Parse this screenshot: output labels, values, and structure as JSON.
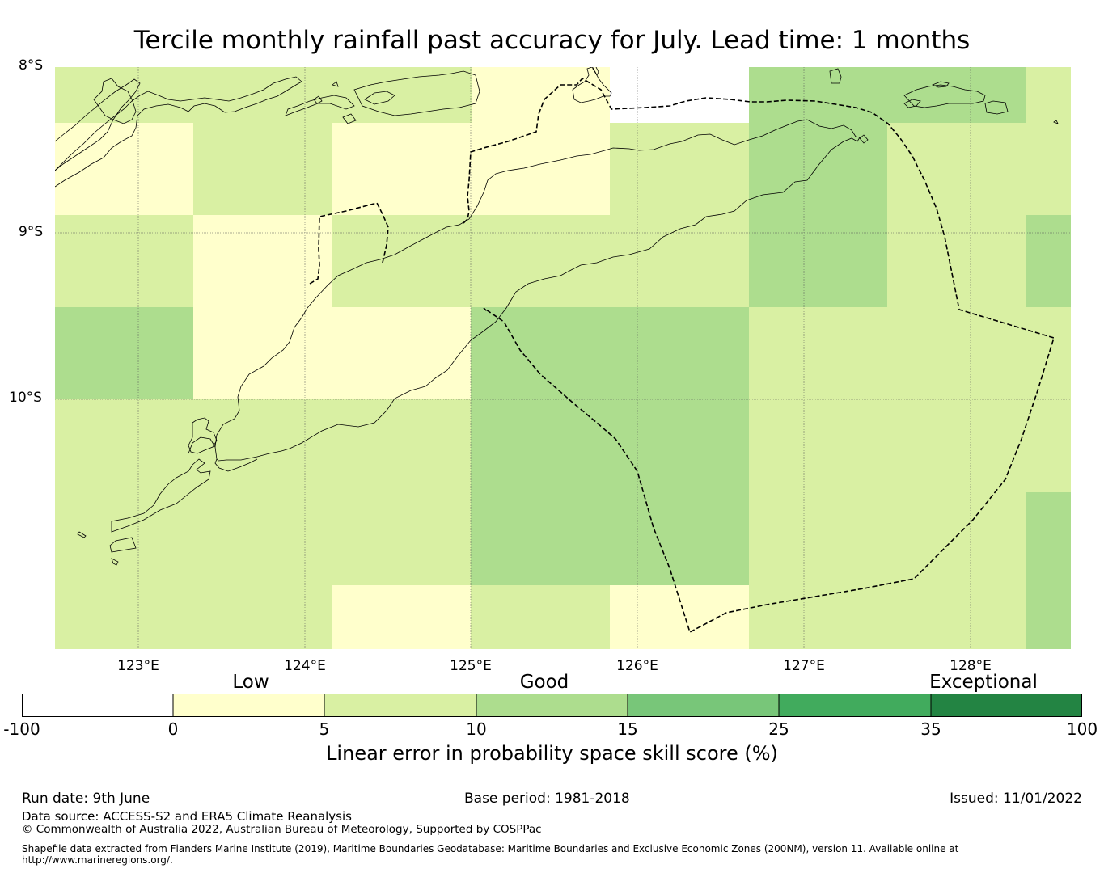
{
  "title": "Tercile monthly rainfall past accuracy for July. Lead time: 1 months",
  "map": {
    "lat_labels": [
      "8°S",
      "9°S",
      "10°S"
    ],
    "lon_labels": [
      "123°E",
      "124°E",
      "125°E",
      "126°E",
      "127°E",
      "128°E"
    ],
    "lat_range": [
      -11.5,
      -8.0
    ],
    "lon_range": [
      122.5,
      128.6
    ]
  },
  "colorbar": {
    "categories": [
      "Low",
      "Good",
      "Exceptional"
    ],
    "ticks": [
      "-100",
      "0",
      "5",
      "10",
      "15",
      "25",
      "35",
      "100"
    ],
    "colors": [
      "#ffffff",
      "#ffffcc",
      "#d9f0a3",
      "#addd8e",
      "#78c679",
      "#41ab5d",
      "#238443"
    ],
    "label": "Linear error in probability space skill score (%)"
  },
  "footer": {
    "run_date": "Run date: 9th June",
    "base_period": "Base period: 1981-2018",
    "issued": "Issued: 11/01/2022",
    "data_source": "Data source: ACCESS-S2 and ERA5 Climate Reanalysis",
    "copyright": "© Commonwealth of Australia 2022, Australian Bureau of Meteorology, Supported by COSPPac",
    "shapefile_line1": "Shapefile data extracted from Flanders Marine Institute (2019), Maritime Boundaries Geodatabase: Maritime Boundaries and Exclusive Economic Zones (200NM), version 11. Available online at",
    "shapefile_line2": "http://www.marineregions.org/."
  }
}
